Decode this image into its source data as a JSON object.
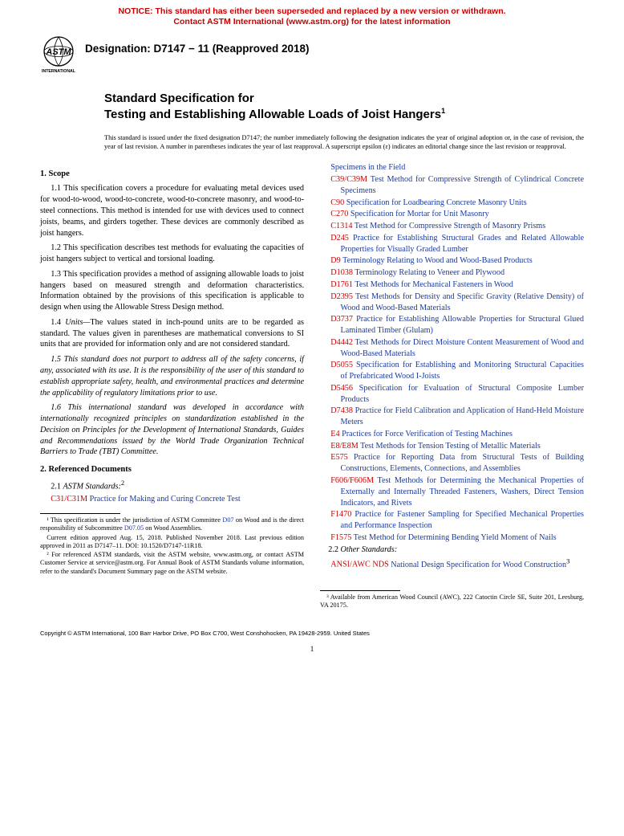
{
  "notice": {
    "line1": "NOTICE: This standard has either been superseded and replaced by a new version or withdrawn.",
    "line2": "Contact ASTM International (www.astm.org) for the latest information"
  },
  "logo": {
    "top_text": "ASTM",
    "bottom_text": "INTERNATIONAL"
  },
  "designation": "Designation: D7147 − 11 (Reapproved 2018)",
  "title": {
    "prefix": "Standard Specification for",
    "main": "Testing and Establishing Allowable Loads of Joist Hangers",
    "super": "1"
  },
  "issuance": "This standard is issued under the fixed designation D7147; the number immediately following the designation indicates the year of original adoption or, in the case of revision, the year of last revision. A number in parentheses indicates the year of last reapproval. A superscript epsilon (ε) indicates an editorial change since the last revision or reapproval.",
  "sections": {
    "scope_head": "1. Scope",
    "p11": "1.1 This specification covers a procedure for evaluating metal devices used for wood-to-wood, wood-to-concrete, wood-to-concrete masonry, and wood-to-steel connections. This method is intended for use with devices used to connect joists, beams, and girders together. These devices are commonly described as joist hangers.",
    "p12": "1.2 This specification describes test methods for evaluating the capacities of joist hangers subject to vertical and torsional loading.",
    "p13": "1.3 This specification provides a method of assigning allowable loads to joist hangers based on measured strength and deformation characteristics. Information obtained by the provisions of this specification is applicable to design when using the Allowable Stress Design method.",
    "p14_lead": "1.4 ",
    "p14_units": "Units—",
    "p14_body": "The values stated in inch-pound units are to be regarded as standard. The values given in parentheses are mathematical conversions to SI units that are provided for information only and are not considered standard.",
    "p15": "1.5 This standard does not purport to address all of the safety concerns, if any, associated with its use. It is the responsibility of the user of this standard to establish appropriate safety, health, and environmental practices and determine the applicability of regulatory limitations prior to use.",
    "p16": "1.6 This international standard was developed in accordance with internationally recognized principles on standardization established in the Decision on Principles for the Development of International Standards, Guides and Recommendations issued by the World Trade Organization Technical Barriers to Trade (TBT) Committee.",
    "refdocs_head": "2. Referenced Documents",
    "p21_lead": "2.1 ",
    "p21_label": "ASTM Standards:",
    "p21_super": "2",
    "p22_lead": "2.2 ",
    "p22_label": "Other Standards:"
  },
  "first_ref": {
    "code": "C31/C31M",
    "title": "Practice for Making and Curing Concrete Test"
  },
  "continuation_title": "Specimens in the Field",
  "refs": [
    {
      "code": "C39/C39M",
      "title": "Test Method for Compressive Strength of Cylindrical Concrete Specimens"
    },
    {
      "code": "C90",
      "title": "Specification for Loadbearing Concrete Masonry Units"
    },
    {
      "code": "C270",
      "title": "Specification for Mortar for Unit Masonry"
    },
    {
      "code": "C1314",
      "title": "Test Method for Compressive Strength of Masonry Prisms"
    },
    {
      "code": "D245",
      "title": "Practice for Establishing Structural Grades and Related Allowable Properties for Visually Graded Lumber"
    },
    {
      "code": "D9",
      "title": "Terminology Relating to Wood and Wood-Based Products"
    },
    {
      "code": "D1038",
      "title": "Terminology Relating to Veneer and Plywood"
    },
    {
      "code": "D1761",
      "title": "Test Methods for Mechanical Fasteners in Wood"
    },
    {
      "code": "D2395",
      "title": "Test Methods for Density and Specific Gravity (Relative Density) of Wood and Wood-Based Materials"
    },
    {
      "code": "D3737",
      "title": "Practice for Establishing Allowable Properties for Structural Glued Laminated Timber (Glulam)"
    },
    {
      "code": "D4442",
      "title": "Test Methods for Direct Moisture Content Measurement of Wood and Wood-Based Materials"
    },
    {
      "code": "D5055",
      "title": "Specification for Establishing and Monitoring Structural Capacities of Prefabricated Wood I-Joists"
    },
    {
      "code": "D5456",
      "title": "Specification for Evaluation of Structural Composite Lumber Products"
    },
    {
      "code": "D7438",
      "title": "Practice for Field Calibration and Application of Hand-Held Moisture Meters"
    },
    {
      "code": "E4",
      "title": "Practices for Force Verification of Testing Machines"
    },
    {
      "code": "E8/E8M",
      "title": "Test Methods for Tension Testing of Metallic Materials"
    },
    {
      "code": "E575",
      "title": "Practice for Reporting Data from Structural Tests of Building Constructions, Elements, Connections, and Assemblies"
    },
    {
      "code": "F606/F606M",
      "title": "Test Methods for Determining the Mechanical Properties of Externally and Internally Threaded Fasteners, Washers, Direct Tension Indicators, and Rivets"
    },
    {
      "code": "F1470",
      "title": "Practice for Fastener Sampling for Specified Mechanical Properties and Performance Inspection"
    },
    {
      "code": "F1575",
      "title": "Test Method for Determining Bending Yield Moment of Nails"
    }
  ],
  "other_ref": {
    "code": "ANSI/AWC NDS",
    "title": "National Design Specification for Wood Construction",
    "super": "3"
  },
  "footnotes_left": {
    "f1a": "¹ This specification is under the jurisdiction of ASTM Committee ",
    "f1_link1": "D07",
    "f1b": " on Wood and is the direct responsibility of Subcommittee ",
    "f1_link2": "D07.05",
    "f1c": " on Wood Assemblies.",
    "f1d": "Current edition approved Aug. 15, 2018. Published November 2018. Last previous edition approved in 2011 as D7147–11. DOI: 10.1520/D7147-11R18.",
    "f2": "² For referenced ASTM standards, visit the ASTM website, www.astm.org, or contact ASTM Customer Service at service@astm.org. For Annual Book of ASTM Standards volume information, refer to the standard's Document Summary page on the ASTM website."
  },
  "footnotes_right": {
    "f3": "³ Available from American Wood Council (AWC), 222 Catoctin Circle SE, Suite 201, Leesburg, VA 20175."
  },
  "copyright": "Copyright © ASTM International, 100 Barr Harbor Drive, PO Box C700, West Conshohocken, PA 19428-2959. United States",
  "page_number": "1",
  "colors": {
    "notice_red": "#cc0000",
    "ref_red": "#cc0000",
    "link_blue": "#1a3a9c",
    "text_black": "#000000"
  }
}
